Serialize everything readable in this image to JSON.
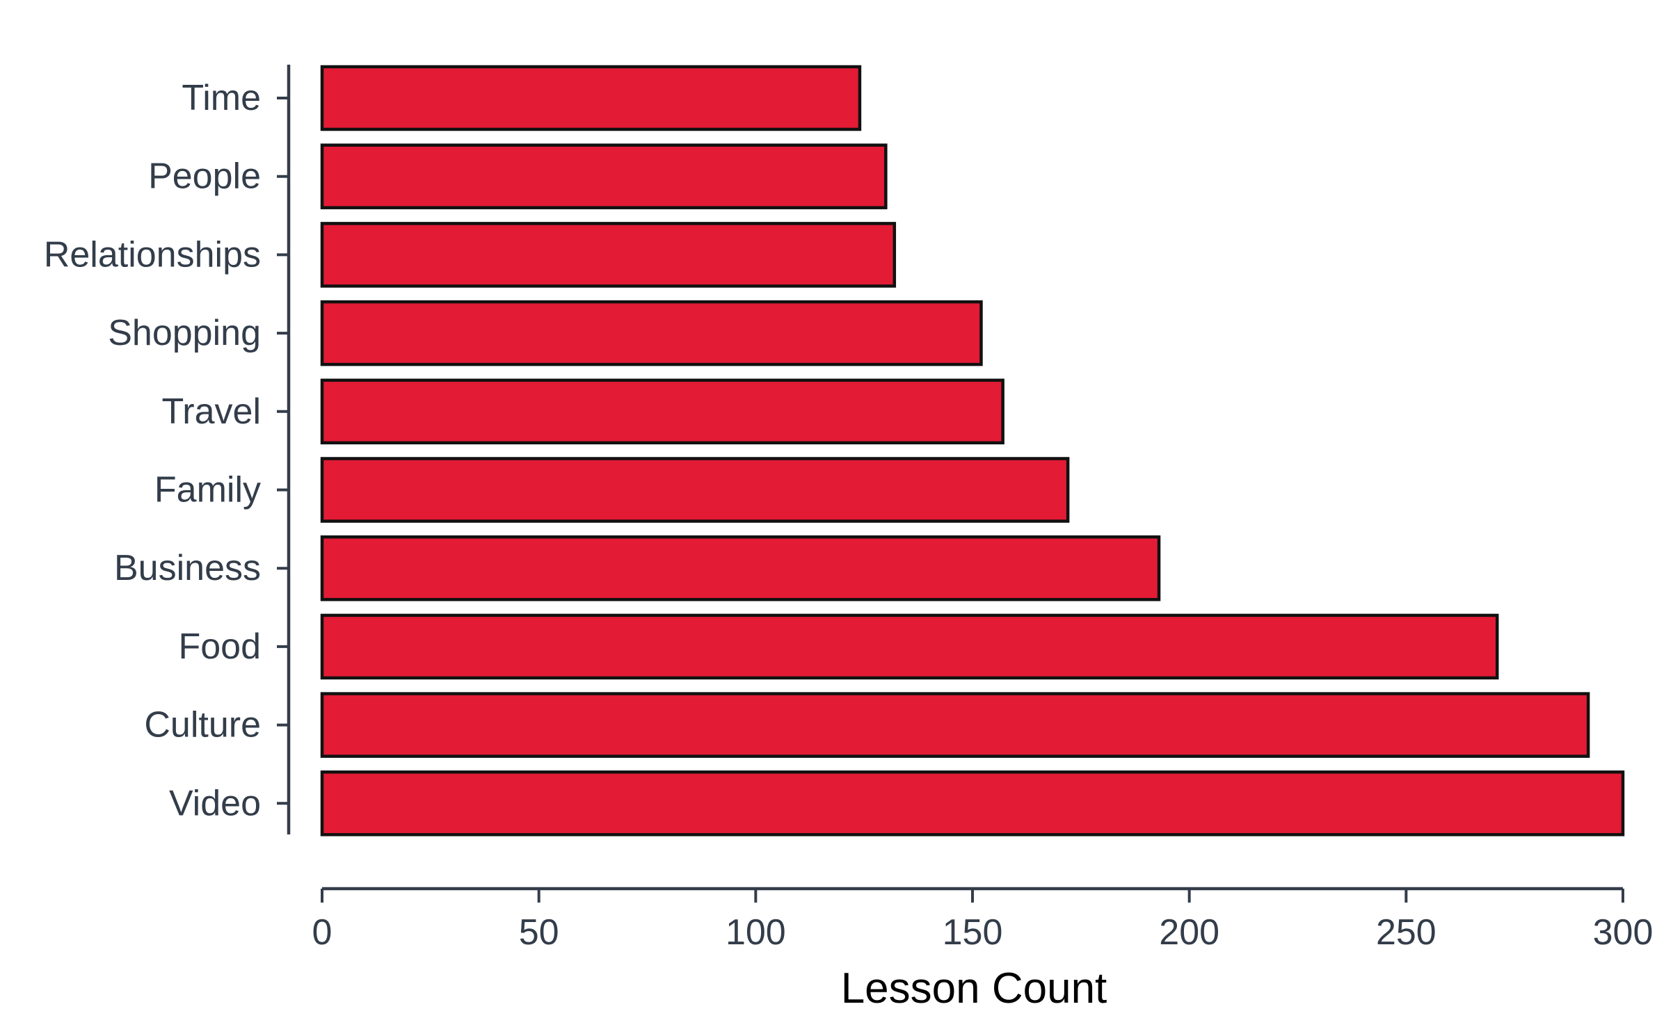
{
  "chart_data": {
    "type": "bar",
    "orientation": "horizontal",
    "title": "",
    "xlabel": "Lesson Count",
    "ylabel": "",
    "categories": [
      "Time",
      "People",
      "Relationships",
      "Shopping",
      "Travel",
      "Family",
      "Business",
      "Food",
      "Culture",
      "Video"
    ],
    "values": [
      124,
      130,
      132,
      152,
      157,
      172,
      193,
      271,
      292,
      300
    ],
    "xlim": [
      0,
      300
    ],
    "xticks": [
      0,
      50,
      100,
      150,
      200,
      250,
      300
    ],
    "grid": false,
    "legend": "none",
    "bar_color": "#e31b35",
    "edge_color": "#111111"
  }
}
